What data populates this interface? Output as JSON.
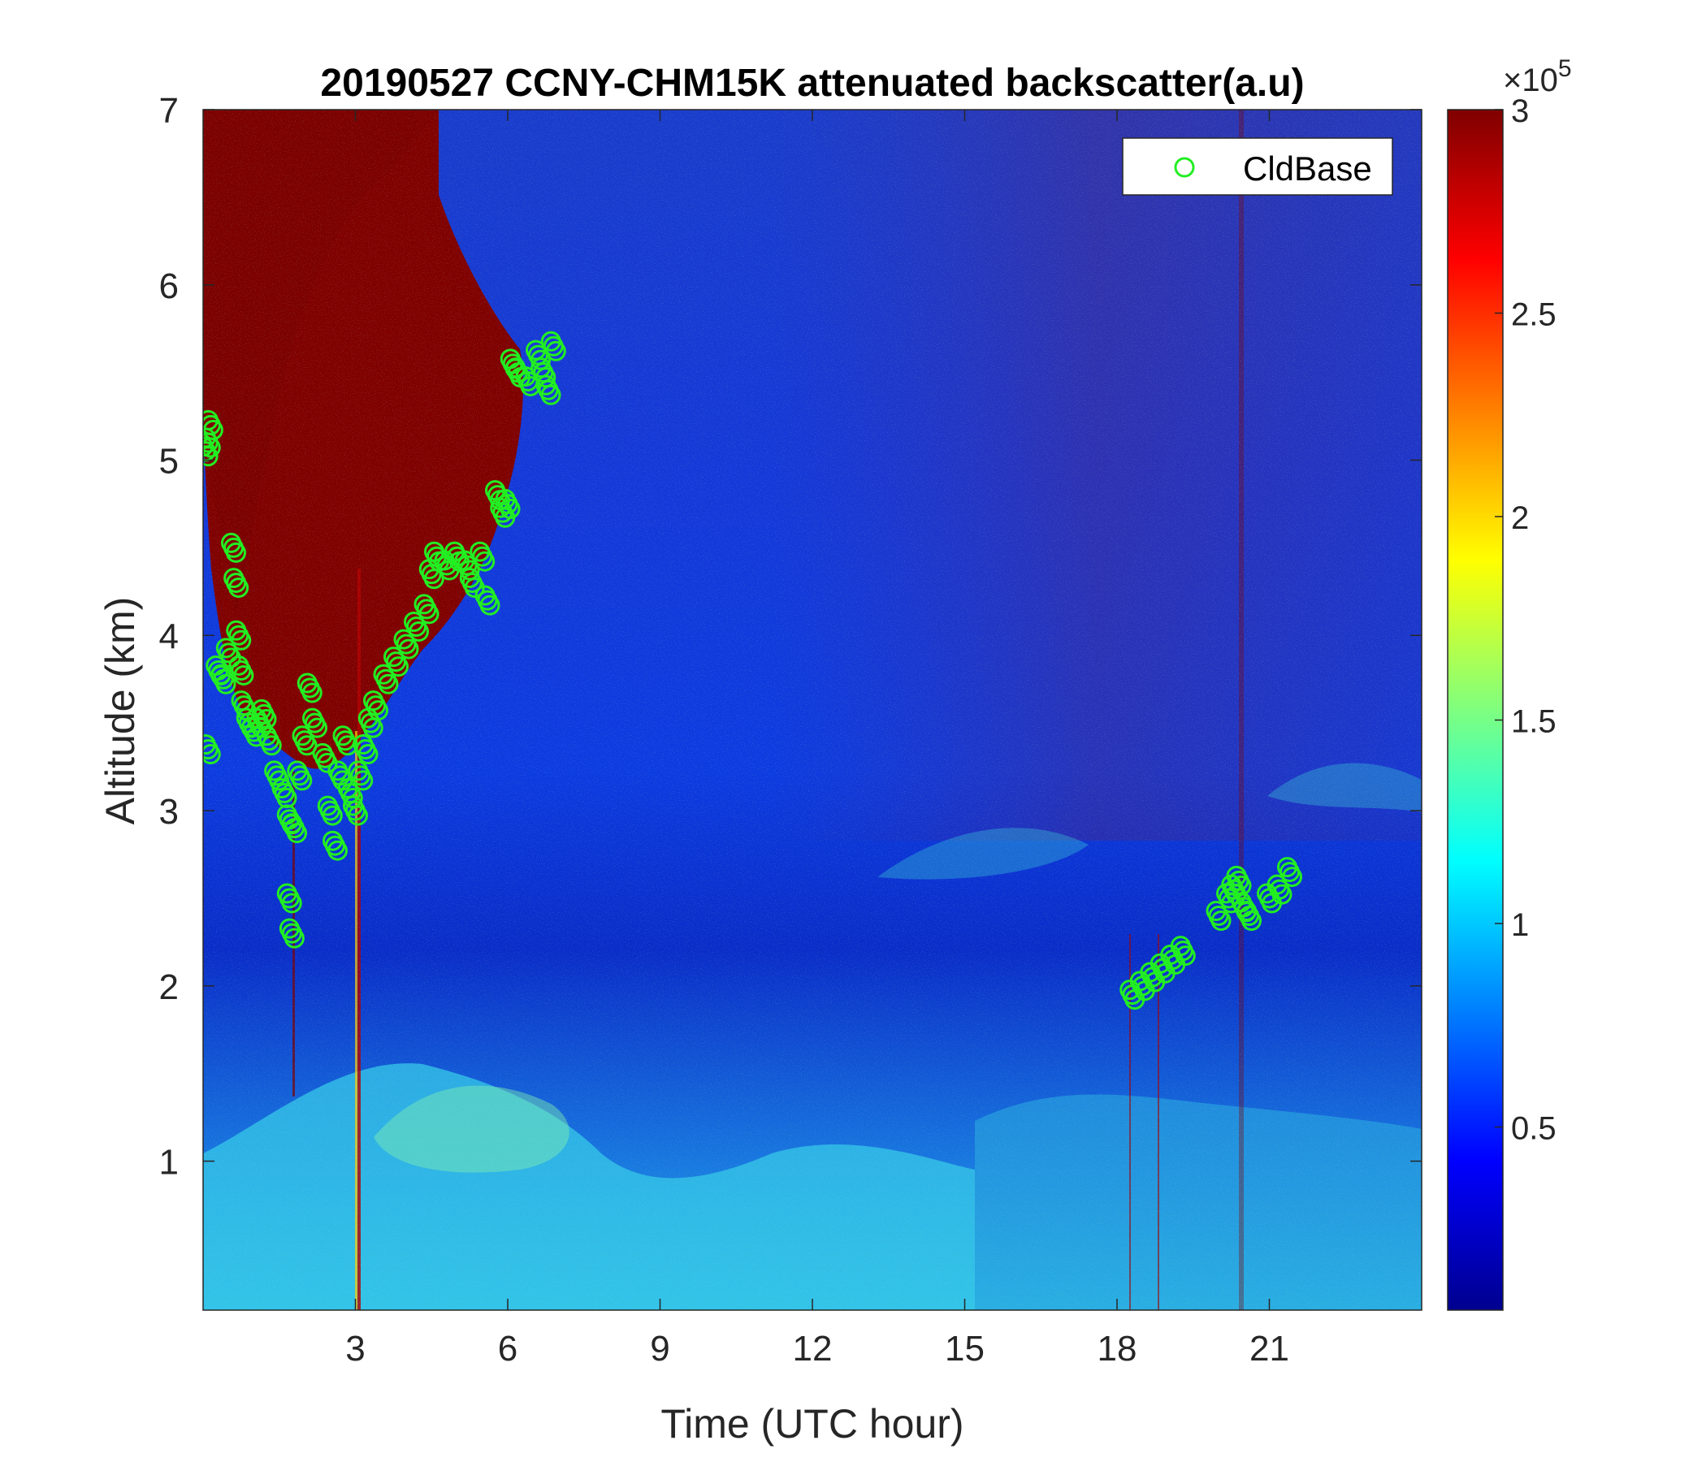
{
  "chart_data": {
    "type": "heatmap",
    "title": "20190527 CCNY-CHM15K attenuated backscatter(a.u)",
    "xlabel": "Time (UTC hour)",
    "ylabel": "Altitude (km)",
    "xlim": [
      0,
      24
    ],
    "ylim": [
      0.15,
      7
    ],
    "xticks": [
      3,
      6,
      9,
      12,
      15,
      18,
      21
    ],
    "yticks": [
      1,
      2,
      3,
      4,
      5,
      6,
      7
    ],
    "colorbar": {
      "min": 0.05,
      "max": 3,
      "ticks": [
        0.5,
        1,
        1.5,
        2,
        2.5,
        3
      ],
      "exponent_label": "×10",
      "exponent": "5",
      "colormap": "jet"
    },
    "legend": {
      "position": "top-right",
      "entries": [
        "CldBase"
      ]
    },
    "series": [
      {
        "name": "CldBase",
        "marker": "circle",
        "color": "#22ee22",
        "x": [
          0.05,
          0.1,
          0.15,
          0.1,
          0.3,
          0.4,
          0.5,
          0.6,
          0.65,
          0.7,
          0.75,
          0.8,
          0.9,
          1.0,
          1.1,
          1.2,
          1.3,
          1.45,
          1.6,
          1.7,
          1.8,
          1.7,
          1.75,
          1.9,
          2.0,
          2.1,
          2.2,
          2.4,
          2.5,
          2.6,
          2.7,
          2.8,
          2.9,
          3.0,
          3.1,
          3.2,
          3.3,
          3.4,
          3.6,
          3.8,
          4.0,
          4.2,
          4.4,
          4.5,
          4.6,
          4.8,
          5.0,
          5.2,
          5.3,
          5.5,
          5.6,
          5.8,
          5.9,
          6.0,
          6.1,
          6.2,
          6.4,
          6.6,
          6.7,
          6.8,
          6.9,
          18.3,
          18.5,
          18.7,
          18.9,
          19.1,
          19.3,
          20.0,
          20.2,
          20.3,
          20.4,
          20.5,
          20.6,
          21.0,
          21.2,
          21.4
        ],
        "y": [
          5.05,
          5.1,
          5.2,
          3.35,
          3.8,
          3.75,
          3.9,
          4.5,
          4.3,
          4.0,
          3.8,
          3.6,
          3.5,
          3.45,
          3.5,
          3.55,
          3.4,
          3.2,
          3.1,
          2.95,
          2.9,
          2.5,
          2.3,
          3.2,
          3.4,
          3.7,
          3.5,
          3.3,
          3.0,
          2.8,
          3.2,
          3.4,
          3.1,
          3.0,
          3.2,
          3.35,
          3.5,
          3.6,
          3.75,
          3.85,
          3.95,
          4.05,
          4.15,
          4.35,
          4.45,
          4.4,
          4.45,
          4.4,
          4.3,
          4.45,
          4.2,
          4.8,
          4.7,
          4.75,
          5.55,
          5.5,
          5.45,
          5.6,
          5.5,
          5.4,
          5.65,
          1.95,
          2.0,
          2.05,
          2.1,
          2.15,
          2.2,
          2.4,
          2.5,
          2.55,
          2.6,
          2.45,
          2.4,
          2.5,
          2.55,
          2.65
        ]
      }
    ]
  }
}
